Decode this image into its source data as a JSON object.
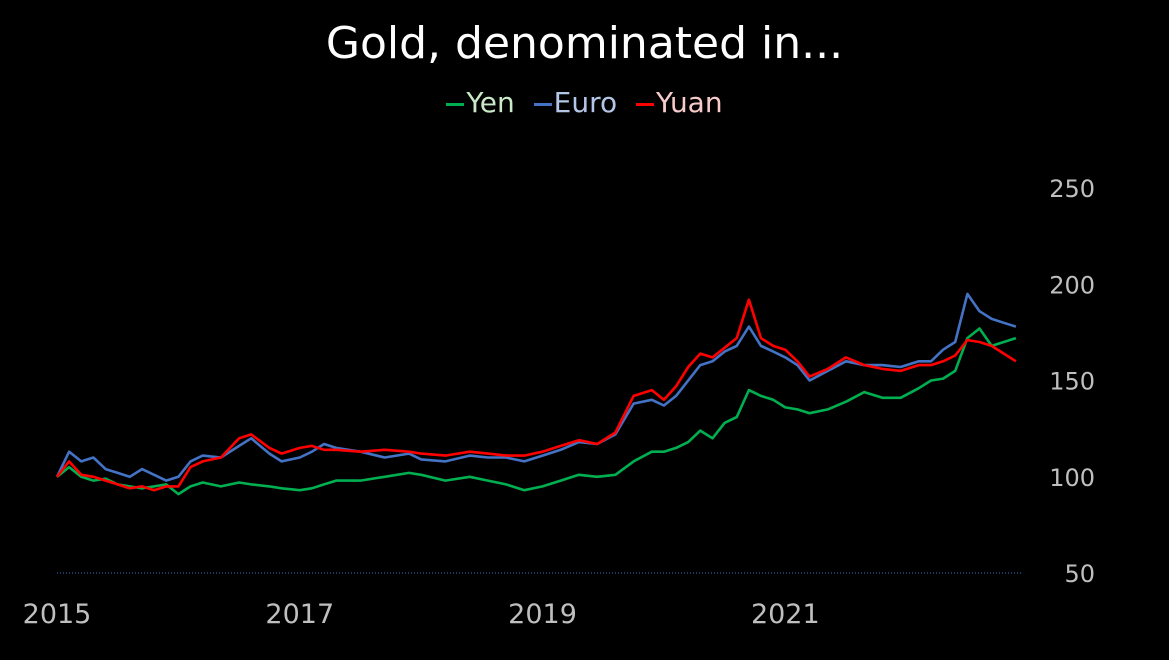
{
  "chart_data": {
    "type": "line",
    "title": "Gold, denominated in...",
    "xlabel": "",
    "ylabel": "",
    "x_ticks": [
      "2015",
      "2017",
      "2019",
      "2021"
    ],
    "y_ticks": [
      "50",
      "100",
      "150",
      "200",
      "250"
    ],
    "xlim": [
      2015.0,
      2022.95
    ],
    "ylim": [
      50,
      250
    ],
    "grid": false,
    "legend_position": "top-center",
    "x": [
      2015.0,
      2015.1,
      2015.2,
      2015.3,
      2015.4,
      2015.5,
      2015.6,
      2015.7,
      2015.8,
      2015.9,
      2016.0,
      2016.1,
      2016.2,
      2016.35,
      2016.5,
      2016.6,
      2016.75,
      2016.85,
      2017.0,
      2017.1,
      2017.2,
      2017.3,
      2017.5,
      2017.7,
      2017.9,
      2018.0,
      2018.2,
      2018.4,
      2018.55,
      2018.7,
      2018.85,
      2019.0,
      2019.15,
      2019.3,
      2019.45,
      2019.6,
      2019.75,
      2019.9,
      2020.0,
      2020.1,
      2020.2,
      2020.3,
      2020.4,
      2020.5,
      2020.6,
      2020.7,
      2020.8,
      2020.9,
      2021.0,
      2021.1,
      2021.2,
      2021.35,
      2021.5,
      2021.65,
      2021.8,
      2021.95,
      2022.1,
      2022.2,
      2022.3,
      2022.4,
      2022.5,
      2022.6,
      2022.7,
      2022.8,
      2022.9
    ],
    "series": [
      {
        "name": "Yen",
        "color": "#00b050",
        "values": [
          100,
          105,
          100,
          98,
          99,
          96,
          95,
          94,
          95,
          96,
          91,
          95,
          97,
          95,
          97,
          96,
          95,
          94,
          93,
          94,
          96,
          98,
          98,
          100,
          102,
          101,
          98,
          100,
          98,
          96,
          93,
          95,
          98,
          101,
          100,
          101,
          108,
          113,
          113,
          115,
          118,
          124,
          120,
          128,
          131,
          145,
          142,
          140,
          136,
          135,
          133,
          135,
          139,
          144,
          141,
          141,
          146,
          150,
          151,
          155,
          172,
          177,
          168,
          170,
          172
        ]
      },
      {
        "name": "Euro",
        "color": "#4472c4",
        "values": [
          100,
          113,
          108,
          110,
          104,
          102,
          100,
          104,
          101,
          98,
          100,
          108,
          111,
          110,
          116,
          120,
          112,
          108,
          110,
          113,
          117,
          115,
          113,
          110,
          112,
          109,
          108,
          111,
          110,
          110,
          108,
          111,
          114,
          118,
          117,
          122,
          138,
          140,
          137,
          142,
          150,
          158,
          160,
          165,
          168,
          178,
          168,
          165,
          162,
          158,
          150,
          155,
          160,
          158,
          158,
          157,
          160,
          160,
          166,
          170,
          195,
          186,
          182,
          180,
          178
        ]
      },
      {
        "name": "Yuan",
        "color": "#ff0000",
        "values": [
          100,
          108,
          101,
          100,
          98,
          96,
          94,
          95,
          93,
          95,
          95,
          105,
          108,
          110,
          120,
          122,
          115,
          112,
          115,
          116,
          114,
          114,
          113,
          114,
          113,
          112,
          111,
          113,
          112,
          111,
          111,
          113,
          116,
          119,
          117,
          123,
          142,
          145,
          140,
          147,
          157,
          164,
          162,
          167,
          172,
          192,
          172,
          168,
          166,
          160,
          152,
          156,
          162,
          158,
          156,
          155,
          158,
          158,
          160,
          163,
          171,
          170,
          168,
          164,
          160
        ]
      }
    ],
    "baseline": {
      "value": 50,
      "color": "#4472c4",
      "style": "dotted"
    }
  }
}
